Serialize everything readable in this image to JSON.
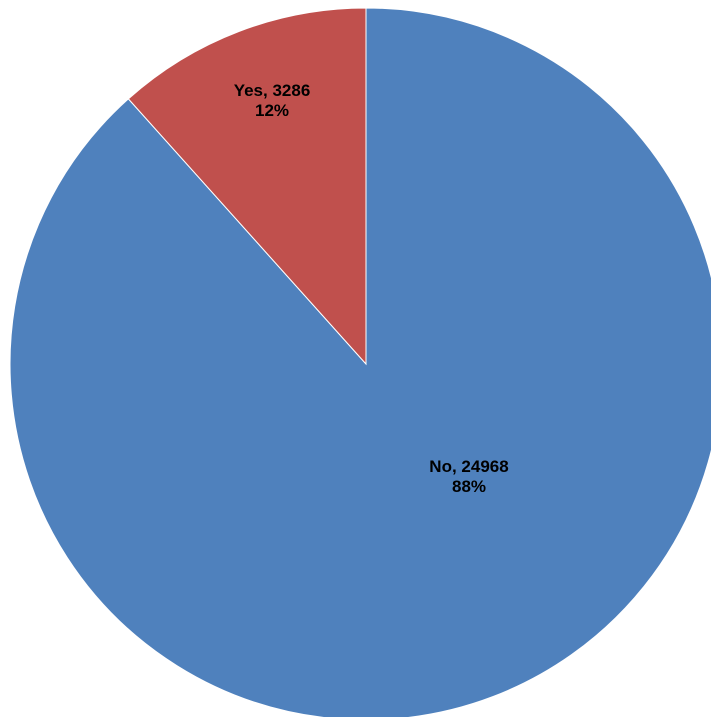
{
  "chart_data": {
    "type": "pie",
    "title": "",
    "legend": "none",
    "start_angle_deg": 0,
    "direction": "counterclockwise",
    "slices": [
      {
        "label": "No",
        "value": 24968,
        "percent_label": "88%",
        "color": "#4F81BD",
        "label_line1": "No, 24968",
        "label_line2": "88%"
      },
      {
        "label": "Yes",
        "value": 3286,
        "percent_label": "12%",
        "color": "#C0504D",
        "label_line1": "Yes, 3286",
        "label_line2": "12%"
      }
    ]
  }
}
